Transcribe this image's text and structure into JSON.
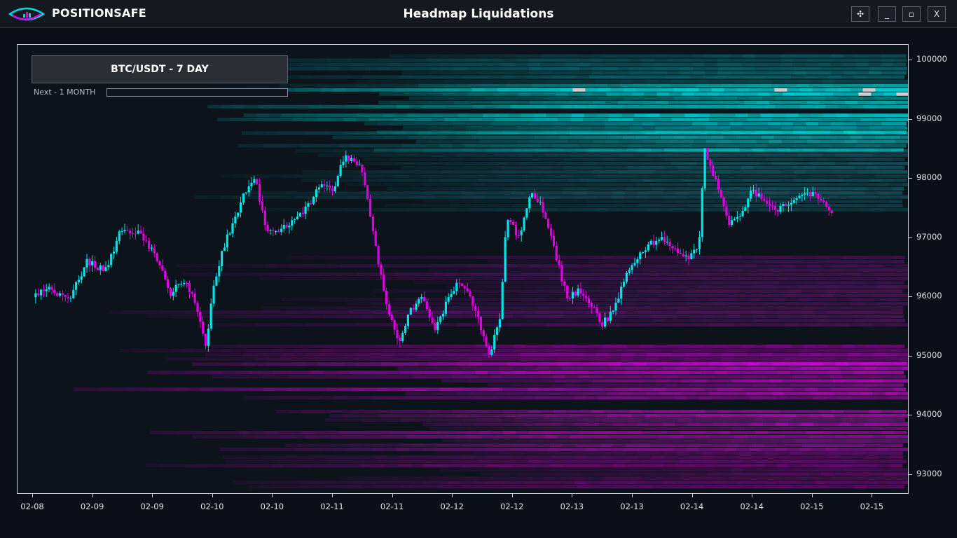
{
  "app": {
    "brand": "POSITIONSAFE",
    "window_title": "Headmap Liquidations",
    "window_buttons": [
      "✣",
      "_",
      "▫",
      "X"
    ],
    "icons": {
      "logo": "eye-logo-icon",
      "move": "move-icon",
      "minimize": "minimize-icon",
      "maximize": "maximize-icon",
      "close": "close-icon"
    }
  },
  "panel": {
    "symbol_label": "BTC/USDT - 7 DAY",
    "next_label": "Next - 1 MONTH",
    "progress": 0
  },
  "colors": {
    "background": "#0c131b",
    "bull": "#00e5e5",
    "bear": "#e000e0",
    "heat_high": "#00ffff",
    "heat_low": "#ff00ff"
  },
  "chart_data": {
    "type": "heatmap",
    "title": "",
    "xlabel": "",
    "ylabel": "",
    "x_ticks": [
      "02-08",
      "02-09",
      "02-09",
      "02-10",
      "02-10",
      "02-11",
      "02-11",
      "02-12",
      "02-12",
      "02-13",
      "02-13",
      "02-14",
      "02-14",
      "02-15",
      "02-15"
    ],
    "y_ticks": [
      100000,
      99000,
      98000,
      97000,
      96000,
      95000,
      94000,
      93000
    ],
    "ylim": [
      92750,
      100250
    ],
    "grid": false,
    "legend": "none",
    "price_series_key": [
      [
        0.0,
        96000
      ],
      [
        0.3,
        96150
      ],
      [
        0.6,
        95950
      ],
      [
        0.9,
        96600
      ],
      [
        1.2,
        96450
      ],
      [
        1.5,
        97200
      ],
      [
        1.8,
        97050
      ],
      [
        2.1,
        96600
      ],
      [
        2.3,
        96050
      ],
      [
        2.5,
        96300
      ],
      [
        2.7,
        95950
      ],
      [
        2.9,
        95150
      ],
      [
        3.0,
        96200
      ],
      [
        3.2,
        96900
      ],
      [
        3.5,
        97700
      ],
      [
        3.7,
        98050
      ],
      [
        3.9,
        97100
      ],
      [
        4.2,
        97200
      ],
      [
        4.5,
        97400
      ],
      [
        4.8,
        97900
      ],
      [
        5.0,
        97800
      ],
      [
        5.2,
        98400
      ],
      [
        5.5,
        98150
      ],
      [
        5.7,
        96900
      ],
      [
        5.9,
        95900
      ],
      [
        6.1,
        95200
      ],
      [
        6.3,
        95800
      ],
      [
        6.5,
        96000
      ],
      [
        6.7,
        95450
      ],
      [
        6.9,
        95900
      ],
      [
        7.1,
        96250
      ],
      [
        7.3,
        96000
      ],
      [
        7.5,
        95400
      ],
      [
        7.6,
        94950
      ],
      [
        7.8,
        95700
      ],
      [
        7.9,
        97400
      ],
      [
        8.1,
        97000
      ],
      [
        8.3,
        97800
      ],
      [
        8.5,
        97500
      ],
      [
        8.7,
        96800
      ],
      [
        8.9,
        96000
      ],
      [
        9.1,
        96100
      ],
      [
        9.3,
        95900
      ],
      [
        9.5,
        95550
      ],
      [
        9.7,
        95800
      ],
      [
        9.9,
        96400
      ],
      [
        10.1,
        96700
      ],
      [
        10.3,
        96900
      ],
      [
        10.5,
        97000
      ],
      [
        10.7,
        96850
      ],
      [
        10.9,
        96650
      ],
      [
        11.1,
        96800
      ],
      [
        11.2,
        98500
      ],
      [
        11.4,
        97900
      ],
      [
        11.6,
        97200
      ],
      [
        11.8,
        97400
      ],
      [
        12.0,
        97800
      ],
      [
        12.2,
        97600
      ],
      [
        12.4,
        97450
      ],
      [
        12.6,
        97600
      ],
      [
        12.8,
        97700
      ],
      [
        13.0,
        97750
      ],
      [
        13.2,
        97550
      ],
      [
        13.35,
        97380
      ]
    ],
    "heat_bands": [
      {
        "y0": 99200,
        "y1": 99600,
        "intensity": 1.0
      },
      {
        "y0": 98800,
        "y1": 99100,
        "intensity": 0.95
      },
      {
        "y0": 98500,
        "y1": 98800,
        "intensity": 0.7
      },
      {
        "y0": 99600,
        "y1": 100100,
        "intensity": 0.45
      },
      {
        "y0": 97500,
        "y1": 98500,
        "intensity": 0.35
      },
      {
        "y0": 95500,
        "y1": 96700,
        "intensity": -0.35
      },
      {
        "y0": 94900,
        "y1": 95200,
        "intensity": -0.6
      },
      {
        "y0": 94300,
        "y1": 94900,
        "intensity": -0.8
      },
      {
        "y0": 93400,
        "y1": 94100,
        "intensity": -0.75
      },
      {
        "y0": 92800,
        "y1": 93400,
        "intensity": -0.45
      }
    ]
  }
}
